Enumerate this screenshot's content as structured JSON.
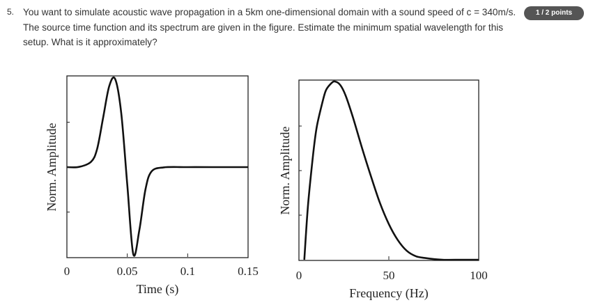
{
  "question": {
    "number": "5.",
    "text": "You want to simulate acoustic wave propagation in a 5km one-dimensional domain with a sound speed of c = 340m/s. The source time function and its spectrum are given in the figure. Estimate the minimum spatial wavelength for this setup. What is it approximately?",
    "points_badge": "1 / 2 points"
  },
  "chart_data": [
    {
      "type": "line",
      "xlabel": "Time (s)",
      "ylabel": "Norm. Amplitude",
      "xlim": [
        0,
        0.15
      ],
      "ylim": [
        -1,
        1
      ],
      "xticks": [
        "0",
        "0.05",
        "0.1",
        "0.15"
      ],
      "series": [
        {
          "x": [
            0,
            0.01,
            0.02,
            0.025,
            0.03,
            0.035,
            0.04,
            0.045,
            0.05,
            0.055,
            0.06,
            0.065,
            0.07,
            0.08,
            0.1,
            0.12,
            0.15
          ],
          "values": [
            0,
            0.002,
            0.06,
            0.2,
            0.55,
            0.9,
            0.98,
            0.6,
            -0.2,
            -0.97,
            -0.7,
            -0.25,
            -0.05,
            -0.003,
            0,
            0,
            0
          ]
        }
      ]
    },
    {
      "type": "line",
      "xlabel": "Frequency (Hz)",
      "ylabel": "Norm. Amplitude",
      "xlim": [
        0,
        100
      ],
      "ylim": [
        0,
        1
      ],
      "xticks": [
        "0",
        "50",
        "100"
      ],
      "series": [
        {
          "x": [
            3,
            5,
            8,
            10,
            13,
            15,
            18,
            20,
            23,
            26,
            30,
            35,
            40,
            45,
            50,
            55,
            60,
            65,
            70,
            80,
            90,
            100
          ],
          "values": [
            0,
            0.3,
            0.6,
            0.75,
            0.88,
            0.95,
            0.99,
            1.0,
            0.98,
            0.92,
            0.8,
            0.63,
            0.47,
            0.32,
            0.2,
            0.11,
            0.05,
            0.02,
            0.01,
            0,
            0,
            0
          ]
        }
      ]
    }
  ]
}
